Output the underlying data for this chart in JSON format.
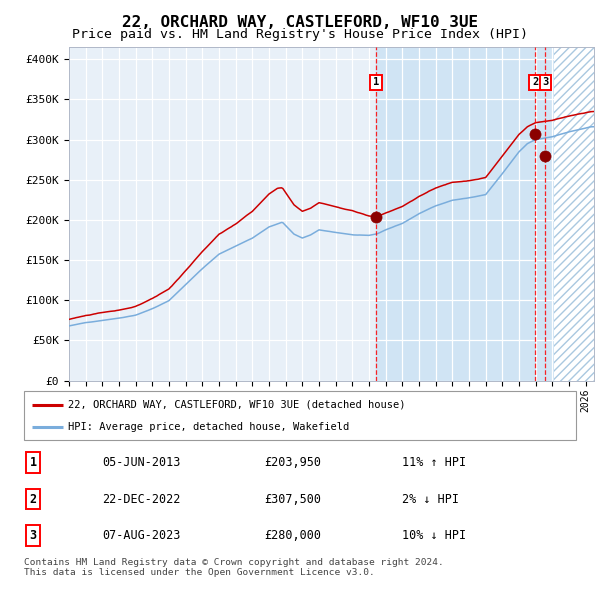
{
  "title": "22, ORCHARD WAY, CASTLEFORD, WF10 3UE",
  "subtitle": "Price paid vs. HM Land Registry's House Price Index (HPI)",
  "title_fontsize": 11.5,
  "subtitle_fontsize": 9.5,
  "ylabel_ticks": [
    "£0",
    "£50K",
    "£100K",
    "£150K",
    "£200K",
    "£250K",
    "£300K",
    "£350K",
    "£400K"
  ],
  "ytick_vals": [
    0,
    50000,
    100000,
    150000,
    200000,
    250000,
    300000,
    350000,
    400000
  ],
  "ylim": [
    0,
    415000
  ],
  "xlim_start": 1995.0,
  "xlim_end": 2026.5,
  "hpi_color": "#7aaddc",
  "property_color": "#cc0000",
  "sale1_date": 2013.42,
  "sale1_price": 203950,
  "sale1_label": "1",
  "sale2_date": 2022.97,
  "sale2_price": 307500,
  "sale2_label": "2",
  "sale3_date": 2023.59,
  "sale3_price": 280000,
  "sale3_label": "3",
  "legend_property": "22, ORCHARD WAY, CASTLEFORD, WF10 3UE (detached house)",
  "legend_hpi": "HPI: Average price, detached house, Wakefield",
  "table_rows": [
    [
      "1",
      "05-JUN-2013",
      "£203,950",
      "11% ↑ HPI"
    ],
    [
      "2",
      "22-DEC-2022",
      "£307,500",
      "2% ↓ HPI"
    ],
    [
      "3",
      "07-AUG-2023",
      "£280,000",
      "10% ↓ HPI"
    ]
  ],
  "footer": "Contains HM Land Registry data © Crown copyright and database right 2024.\nThis data is licensed under the Open Government Licence v3.0.",
  "hatch_region_start": 2024.08,
  "shaded_region_start": 2013.42,
  "chart_bg": "#e8f0f8",
  "shaded_bg": "#d0e4f4"
}
